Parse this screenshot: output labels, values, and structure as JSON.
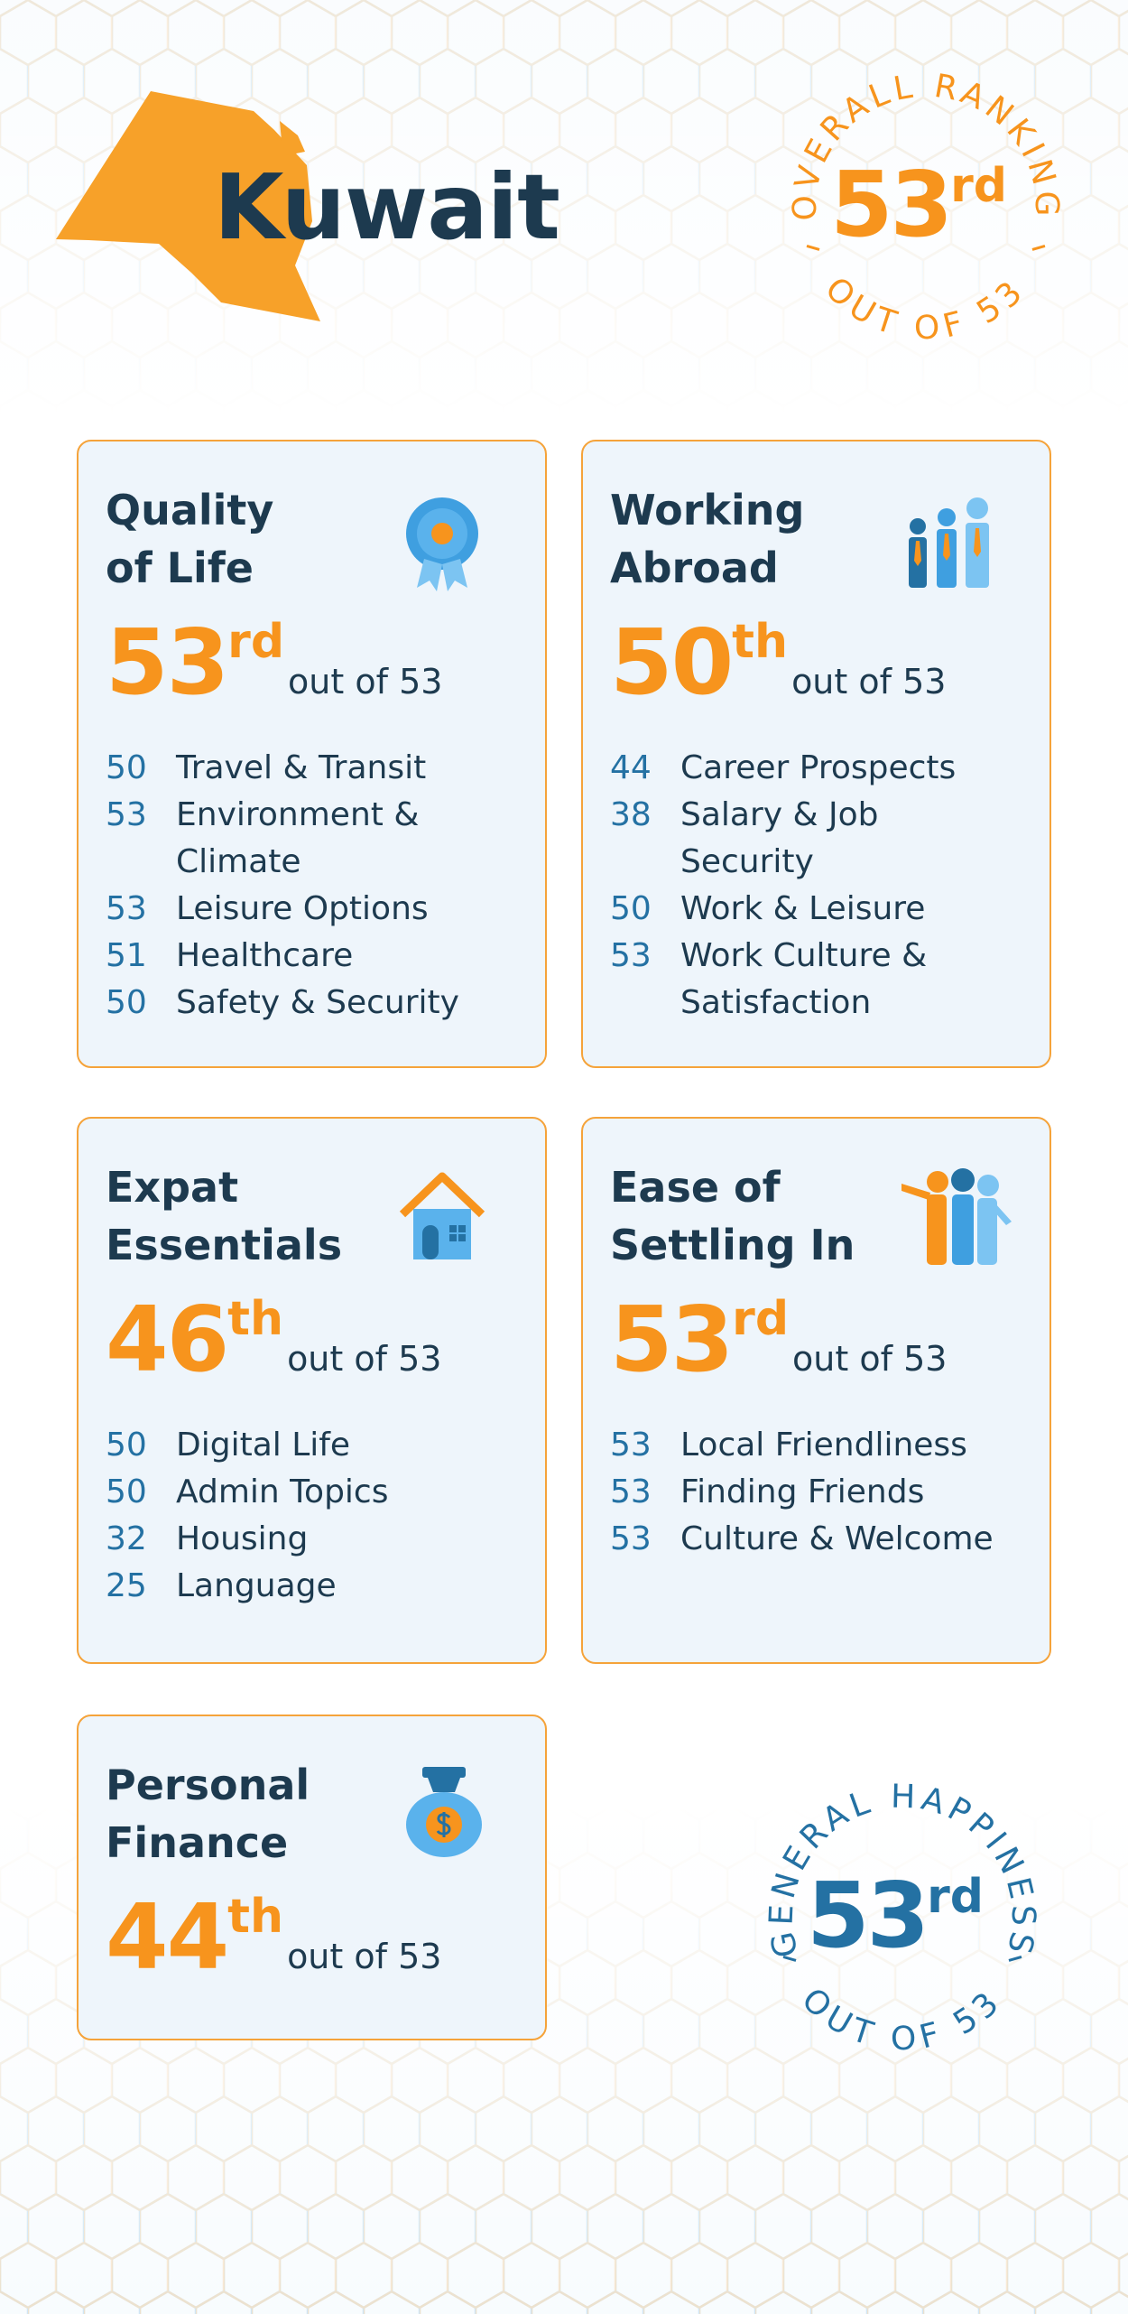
{
  "header": {
    "title": "Kuwait"
  },
  "overall": {
    "label": "OVERALL RANKING",
    "rank": "53",
    "suffix": "rd",
    "out_of": "OUT OF 53"
  },
  "cards": [
    {
      "title_lines": [
        "Quality",
        "of Life"
      ],
      "rank": "53",
      "suffix": "rd",
      "out_of": "out of 53",
      "items": [
        {
          "rank": "50",
          "label": "Travel & Transit"
        },
        {
          "rank": "53",
          "label": "Environment & Climate"
        },
        {
          "rank": "53",
          "label": "Leisure Options"
        },
        {
          "rank": "51",
          "label": "Healthcare"
        },
        {
          "rank": "50",
          "label": "Safety & Security"
        }
      ]
    },
    {
      "title_lines": [
        "Working",
        "Abroad"
      ],
      "rank": "50",
      "suffix": "th",
      "out_of": "out of 53",
      "items": [
        {
          "rank": "44",
          "label": "Career Prospects"
        },
        {
          "rank": "38",
          "label": "Salary & Job Security"
        },
        {
          "rank": "50",
          "label": "Work & Leisure"
        },
        {
          "rank": "53",
          "label": "Work Culture & Satisfaction"
        }
      ]
    },
    {
      "title_lines": [
        "Expat",
        "Essentials"
      ],
      "rank": "46",
      "suffix": "th",
      "out_of": "out of 53",
      "items": [
        {
          "rank": "50",
          "label": "Digital Life"
        },
        {
          "rank": "50",
          "label": "Admin Topics"
        },
        {
          "rank": "32",
          "label": "Housing"
        },
        {
          "rank": "25",
          "label": "Language"
        }
      ]
    },
    {
      "title_lines": [
        "Ease of",
        "Settling In"
      ],
      "rank": "53",
      "suffix": "rd",
      "out_of": "out of 53",
      "items": [
        {
          "rank": "53",
          "label": "Local Friendliness"
        },
        {
          "rank": "53",
          "label": "Finding Friends"
        },
        {
          "rank": "53",
          "label": "Culture & Welcome"
        }
      ]
    },
    {
      "title_lines": [
        "Personal",
        "Finance"
      ],
      "rank": "44",
      "suffix": "th",
      "out_of": "out of 53",
      "items": []
    }
  ],
  "happiness": {
    "label": "GENERAL HAPPINESS",
    "rank": "53",
    "suffix": "rd",
    "out_of": "OUT OF 53"
  }
}
